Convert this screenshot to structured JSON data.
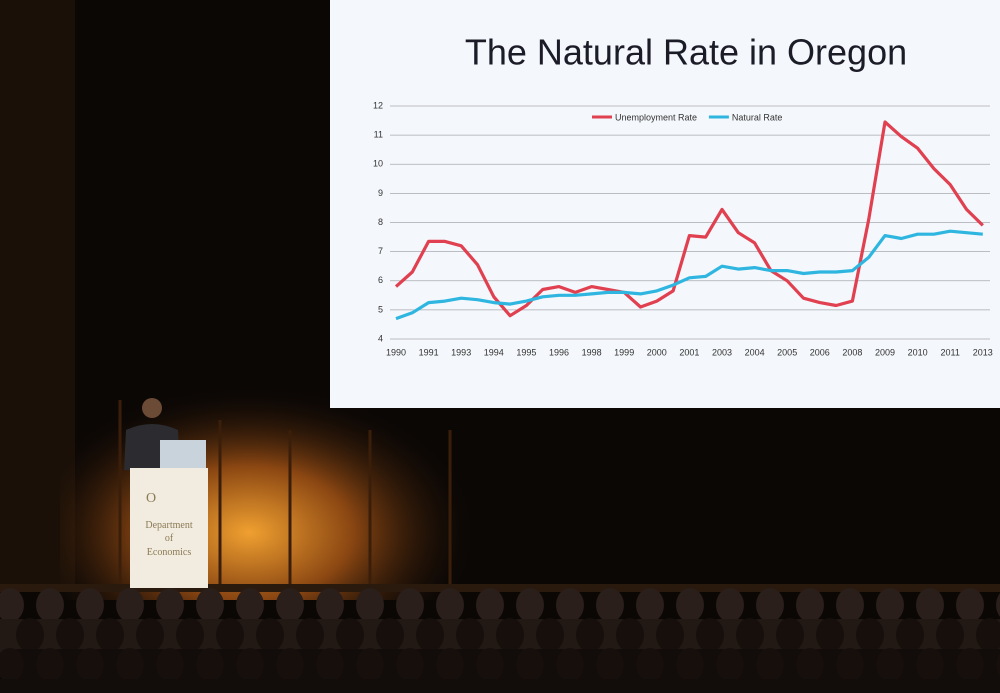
{
  "chart_data": {
    "type": "line",
    "title": "The Natural Rate in Oregon",
    "categories": [
      "1990",
      null,
      "1991",
      null,
      "1993",
      null,
      "1994",
      null,
      "1995",
      null,
      "1996",
      null,
      "1998",
      null,
      "1999",
      null,
      "2000",
      null,
      "2001",
      null,
      "2003",
      null,
      "2004",
      null,
      "2005",
      null,
      "2006",
      null,
      "2008",
      null,
      "2009",
      null,
      "2010",
      null,
      "2011",
      null,
      "2013"
    ],
    "series": [
      {
        "name": "Unemployment Rate",
        "color": "#e0404f",
        "values": [
          5.8,
          6.3,
          7.35,
          7.35,
          7.2,
          6.55,
          5.45,
          4.8,
          5.15,
          5.7,
          5.8,
          5.6,
          5.8,
          5.7,
          5.6,
          5.1,
          5.3,
          5.65,
          7.55,
          7.5,
          8.45,
          7.65,
          7.3,
          6.35,
          6.0,
          5.4,
          5.25,
          5.15,
          5.3,
          8.1,
          11.45,
          10.95,
          10.55,
          9.85,
          9.3,
          8.45,
          7.9
        ]
      },
      {
        "name": "Natural Rate",
        "color": "#2fb6e0",
        "values": [
          4.7,
          4.9,
          5.25,
          5.3,
          5.4,
          5.35,
          5.25,
          5.2,
          5.3,
          5.45,
          5.5,
          5.5,
          5.55,
          5.6,
          5.6,
          5.55,
          5.65,
          5.85,
          6.1,
          6.15,
          6.5,
          6.4,
          6.45,
          6.35,
          6.35,
          6.25,
          6.3,
          6.3,
          6.35,
          6.8,
          7.55,
          7.45,
          7.6,
          7.6,
          7.7,
          7.65,
          7.6
        ]
      }
    ],
    "ylim": [
      4,
      12
    ],
    "yticks": [
      4,
      5,
      6,
      7,
      8,
      9,
      10,
      11,
      12
    ],
    "grid": true,
    "legend": "top"
  },
  "scene": {
    "podium_text": [
      "O",
      "Department",
      "of",
      "Economics"
    ]
  }
}
